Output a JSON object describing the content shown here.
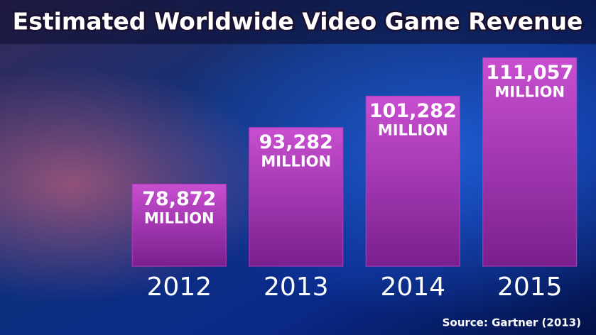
{
  "chart_data": {
    "type": "bar",
    "title": "Estimated Worldwide Video Game Revenue",
    "categories": [
      "2012",
      "2013",
      "2014",
      "2015"
    ],
    "values": [
      78872,
      93282,
      101282,
      111057
    ],
    "value_labels": [
      "78,872",
      "93,282",
      "101,282",
      "111,057"
    ],
    "unit": "MILLION",
    "color": "#b43cc0",
    "ylim": [
      58000,
      116000
    ],
    "source": "Source: Gartner (2013)"
  }
}
